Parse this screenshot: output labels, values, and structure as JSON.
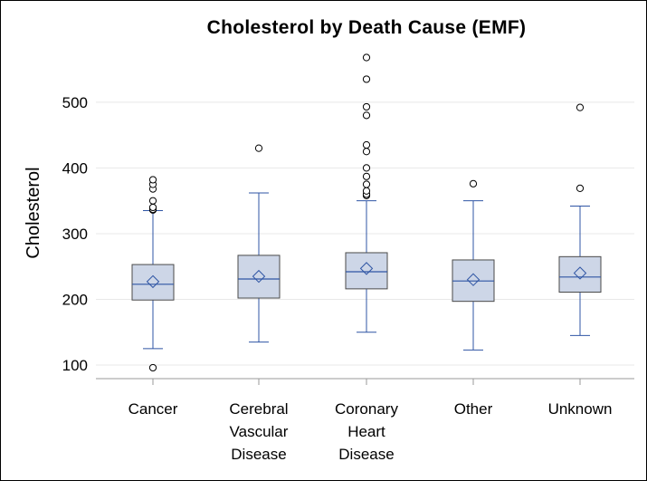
{
  "chart_data": {
    "type": "box",
    "title": "Cholesterol by Death Cause (EMF)",
    "ylabel": "Cholesterol",
    "xlabel": "",
    "ylim": [
      78,
      588
    ],
    "yticks": [
      100,
      200,
      300,
      400,
      500
    ],
    "grid": true,
    "legend": "none",
    "colors": {
      "box_fill": "#cdd6e7",
      "box_stroke": "#4a4a4a",
      "median": "#2f55a4",
      "whisker": "#2f55a4",
      "mean_marker": "#2f55a4",
      "outlier": "#000000",
      "grid": "#e8e8e8",
      "axis": "#999999"
    },
    "categories": [
      [
        "Cancer"
      ],
      [
        "Cerebral",
        "Vascular",
        "Disease"
      ],
      [
        "Coronary",
        "Heart",
        "Disease"
      ],
      [
        "Other"
      ],
      [
        "Unknown"
      ]
    ],
    "boxes": [
      {
        "whisker_low": 125,
        "q1": 199,
        "median": 223,
        "q3": 253,
        "whisker_high": 335,
        "mean": 227,
        "outliers": [
          96,
          336,
          337,
          340,
          350,
          368,
          375,
          382
        ]
      },
      {
        "whisker_low": 135,
        "q1": 202,
        "median": 231,
        "q3": 267,
        "whisker_high": 362,
        "mean": 235,
        "outliers": [
          430
        ]
      },
      {
        "whisker_low": 150,
        "q1": 216,
        "median": 242,
        "q3": 271,
        "whisker_high": 350,
        "mean": 247,
        "outliers": [
          358,
          360,
          365,
          375,
          387,
          400,
          425,
          435,
          480,
          493,
          535,
          568
        ]
      },
      {
        "whisker_low": 123,
        "q1": 197,
        "median": 228,
        "q3": 260,
        "whisker_high": 350,
        "mean": 230,
        "outliers": [
          376
        ]
      },
      {
        "whisker_low": 145,
        "q1": 211,
        "median": 234,
        "q3": 265,
        "whisker_high": 342,
        "mean": 240,
        "outliers": [
          369,
          492
        ]
      }
    ]
  }
}
